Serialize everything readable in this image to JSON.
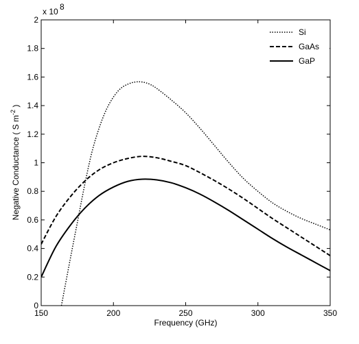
{
  "chart_data": {
    "type": "line",
    "title": "",
    "xlabel": "Frequency (GHz)",
    "ylabel": "Negative Conductance ( S m",
    "ylabel_superscript": "-2",
    "ylabel_suffix": " )",
    "y_multiplier_label": "x 10",
    "y_multiplier_exponent": "8",
    "xlim": [
      150,
      350
    ],
    "ylim": [
      0,
      2
    ],
    "x_ticks": [
      150,
      200,
      250,
      300,
      350
    ],
    "x_tick_labels": [
      "150",
      "200",
      "250",
      "300",
      "350"
    ],
    "y_ticks": [
      0,
      0.2,
      0.4,
      0.6,
      0.8,
      1,
      1.2,
      1.4,
      1.6,
      1.8,
      2
    ],
    "y_tick_labels": [
      "0",
      "0.2",
      "0.4",
      "0.6",
      "0.8",
      "1",
      "1.2",
      "1.4",
      "1.6",
      "1.8",
      "2"
    ],
    "grid": false,
    "legend_position": "top-right",
    "series": [
      {
        "name": "Si",
        "style": "dotted",
        "x": [
          164,
          170,
          175,
          180,
          185,
          190,
          195,
          200,
          205,
          210,
          215,
          220,
          225,
          230,
          240,
          250,
          260,
          270,
          280,
          290,
          300,
          310,
          320,
          330,
          340,
          350
        ],
        "values": [
          0,
          0.32,
          0.58,
          0.84,
          1.07,
          1.24,
          1.37,
          1.46,
          1.52,
          1.55,
          1.565,
          1.565,
          1.55,
          1.52,
          1.44,
          1.35,
          1.24,
          1.12,
          1.0,
          0.89,
          0.8,
          0.72,
          0.66,
          0.61,
          0.57,
          0.53
        ]
      },
      {
        "name": "GaAs",
        "style": "dashed",
        "x": [
          150,
          160,
          170,
          180,
          190,
          200,
          210,
          220,
          230,
          240,
          250,
          260,
          270,
          280,
          290,
          300,
          310,
          320,
          330,
          340,
          350
        ],
        "values": [
          0.43,
          0.62,
          0.76,
          0.87,
          0.95,
          1.0,
          1.03,
          1.045,
          1.035,
          1.01,
          0.98,
          0.93,
          0.875,
          0.815,
          0.75,
          0.68,
          0.61,
          0.545,
          0.48,
          0.415,
          0.35
        ]
      },
      {
        "name": "GaP",
        "style": "solid",
        "x": [
          150,
          160,
          170,
          180,
          190,
          200,
          210,
          220,
          230,
          240,
          250,
          260,
          270,
          280,
          290,
          300,
          310,
          320,
          330,
          340,
          350
        ],
        "values": [
          0.2,
          0.41,
          0.56,
          0.68,
          0.77,
          0.83,
          0.87,
          0.885,
          0.88,
          0.86,
          0.825,
          0.78,
          0.725,
          0.665,
          0.6,
          0.535,
          0.47,
          0.41,
          0.355,
          0.3,
          0.245
        ]
      }
    ],
    "colors": {
      "line": "#000000",
      "frame": "#000000",
      "background": "#ffffff"
    }
  }
}
